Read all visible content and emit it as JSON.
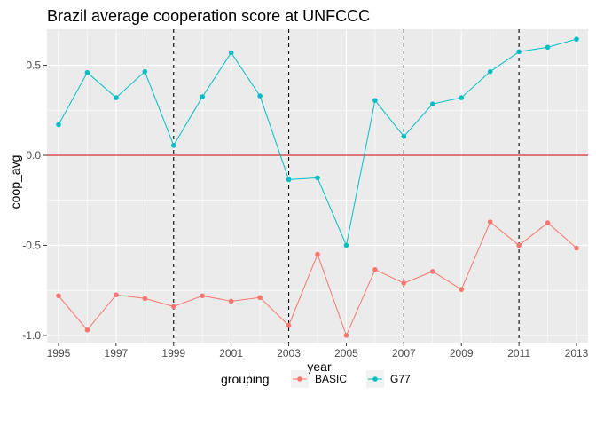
{
  "chart_data": {
    "type": "line",
    "title": "Brazil average cooperation score at UNFCCC",
    "xlabel": "year",
    "ylabel": "coop_avg",
    "x": [
      1995,
      1996,
      1997,
      1998,
      1999,
      2000,
      2001,
      2002,
      2003,
      2004,
      2005,
      2006,
      2007,
      2008,
      2009,
      2010,
      2011,
      2012,
      2013
    ],
    "xlim": [
      1994.6,
      2013.4
    ],
    "ylim": [
      -1.04,
      0.7
    ],
    "x_ticks": [
      1995,
      1997,
      1999,
      2001,
      2003,
      2005,
      2007,
      2009,
      2011,
      2013
    ],
    "x_tick_labels": [
      "1995",
      "1997",
      "1999",
      "2001",
      "2003",
      "2005",
      "2007",
      "2009",
      "2011",
      "2013"
    ],
    "y_ticks": [
      -1.0,
      -0.5,
      0.0,
      0.5
    ],
    "y_tick_labels": [
      "-1.0",
      "-0.5",
      "0.0",
      "0.5"
    ],
    "grid": true,
    "legend_placement": "bottom",
    "legend_title": "grouping",
    "series": [
      {
        "name": "BASIC",
        "color": "#F8766D",
        "values": [
          -0.78,
          -0.97,
          -0.775,
          -0.795,
          -0.84,
          -0.78,
          -0.81,
          -0.79,
          -0.945,
          -0.55,
          -1.0,
          -0.635,
          -0.71,
          -0.645,
          -0.745,
          -0.37,
          -0.5,
          -0.375,
          -0.515
        ]
      },
      {
        "name": "G77",
        "color": "#00BFC4",
        "values": [
          0.17,
          0.46,
          0.32,
          0.465,
          0.055,
          0.325,
          0.57,
          0.33,
          -0.135,
          -0.125,
          -0.5,
          0.305,
          0.105,
          0.285,
          0.32,
          0.465,
          0.575,
          0.6,
          0.645
        ]
      }
    ],
    "vlines": [
      1999,
      2003,
      2007,
      2011
    ],
    "hline": 0,
    "hline_color": "#CC0000"
  }
}
